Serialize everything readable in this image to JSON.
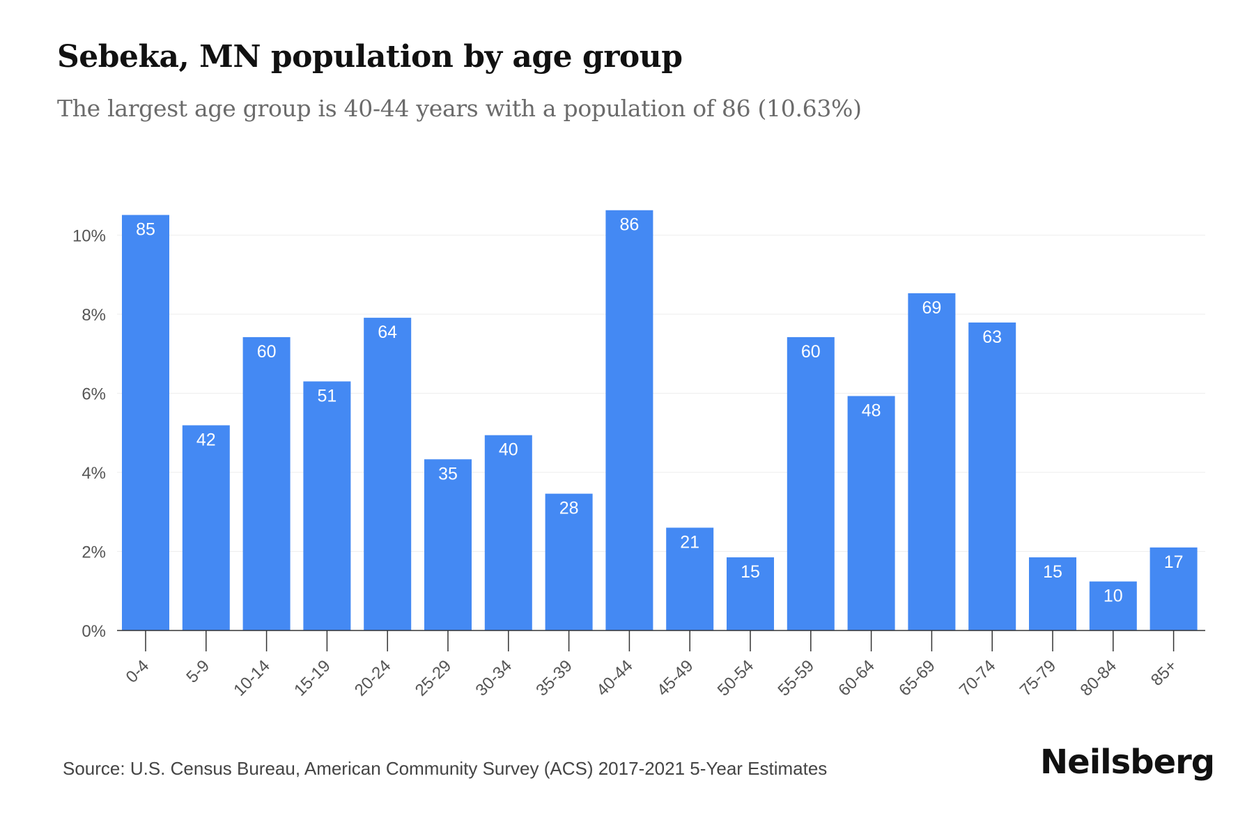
{
  "title": "Sebeka, MN population by age group",
  "subtitle": "The largest age group is 40-44 years with a population of 86 (10.63%)",
  "source": "Source: U.S. Census Bureau, American Community Survey (ACS) 2017-2021 5-Year Estimates",
  "brand": "Neilsberg",
  "colors": {
    "bar": "#4489f3",
    "bar_label": "#ffffff",
    "axis": "#333333",
    "grid": "#eeeeee",
    "tick_text": "#555555"
  },
  "chart_data": {
    "type": "bar",
    "categories": [
      "0-4",
      "5-9",
      "10-14",
      "15-19",
      "20-24",
      "25-29",
      "30-34",
      "35-39",
      "40-44",
      "45-49",
      "50-54",
      "55-59",
      "60-64",
      "65-69",
      "70-74",
      "75-79",
      "80-84",
      "85+"
    ],
    "values": [
      10.51,
      5.19,
      7.42,
      6.3,
      7.91,
      4.33,
      4.94,
      3.46,
      10.63,
      2.6,
      1.85,
      7.42,
      5.93,
      8.53,
      7.79,
      1.85,
      1.24,
      2.1
    ],
    "data_labels": [
      "85",
      "42",
      "60",
      "51",
      "64",
      "35",
      "40",
      "28",
      "86",
      "21",
      "15",
      "60",
      "48",
      "69",
      "63",
      "15",
      "10",
      "17"
    ],
    "y_ticks": [
      "0%",
      "2%",
      "4%",
      "6%",
      "8%",
      "10%"
    ],
    "y_tick_values": [
      0,
      2,
      4,
      6,
      8,
      10
    ],
    "ylim": [
      0,
      11
    ],
    "grid": true,
    "legend": "none"
  }
}
